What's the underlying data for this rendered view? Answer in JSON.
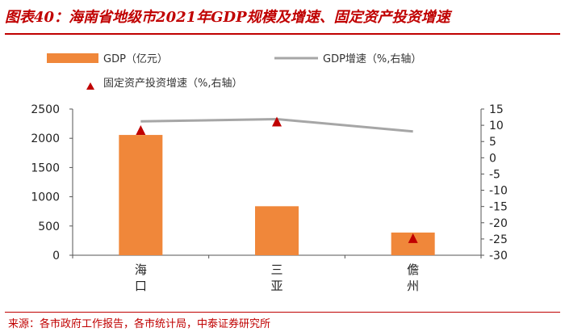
{
  "title": "图表40：海南省地级市2021年GDP规模及增速、固定资产投资增速",
  "source": "来源：各市政府工作报告，各市统计局，中泰证券研究所",
  "chart_data": {
    "type": "bar",
    "categories": [
      "海口",
      "三亚",
      "儋州"
    ],
    "category_lines": [
      [
        "海",
        "口"
      ],
      [
        "三",
        "亚"
      ],
      [
        "儋",
        "州"
      ]
    ],
    "series": [
      {
        "name": "GDP（亿元）",
        "kind": "bar",
        "axis": "left",
        "values": [
          2057,
          838,
          388
        ],
        "color": "#f0873a"
      },
      {
        "name": "GDP增速（%,右轴）",
        "kind": "line",
        "axis": "right",
        "values": [
          11.2,
          11.9,
          8.1
        ],
        "color": "#a6a6a6"
      },
      {
        "name": "固定资产投资增速（%,右轴）",
        "kind": "marker",
        "axis": "right",
        "values": [
          8.3,
          10.9,
          -25.0
        ],
        "color": "#c00000"
      }
    ],
    "y_left": {
      "min": 0,
      "max": 2500,
      "step": 500,
      "ticks": [
        "0",
        "500",
        "1000",
        "1500",
        "2000",
        "2500"
      ]
    },
    "y_right": {
      "min": -30,
      "max": 15,
      "step": 5,
      "ticks": [
        "-30",
        "-25",
        "-20",
        "-15",
        "-10",
        "-5",
        "0",
        "5",
        "10",
        "15"
      ]
    },
    "grid": false,
    "legend_position": "top"
  }
}
